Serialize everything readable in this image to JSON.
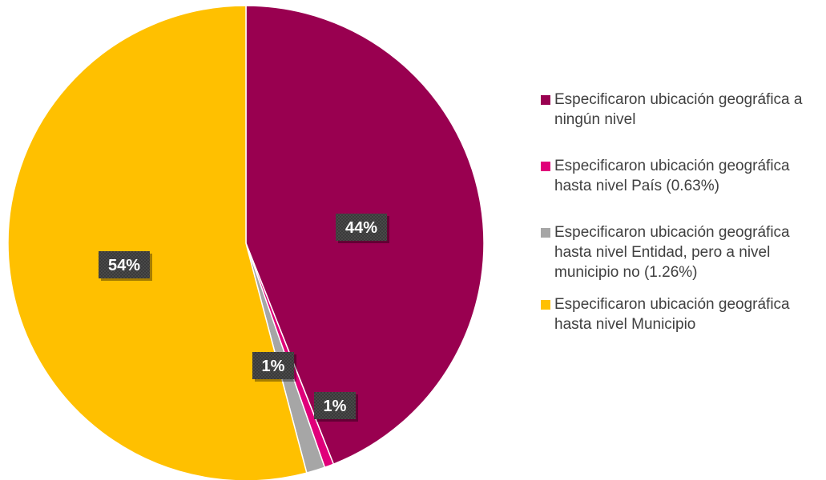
{
  "chart_data": {
    "type": "pie",
    "title": "",
    "categories": [
      "Especificaron ubicación geográfica a ningún nivel",
      "Especificaron ubicación geográfica hasta nivel País (0.63%)",
      "Especificaron ubicación geográfica hasta nivel Entidad, pero a nivel municipio no (1.26%)",
      "Especificaron ubicación geográfica hasta nivel Municipio"
    ],
    "values": [
      44.0,
      0.63,
      1.26,
      54.11
    ],
    "data_labels": [
      "44%",
      "1%",
      "1%",
      "54%"
    ],
    "colors": [
      "#990050",
      "#e0007a",
      "#a6a6a6",
      "#ffc000"
    ],
    "legend_position": "right",
    "start_angle": "12 o'clock",
    "direction": "clockwise"
  }
}
